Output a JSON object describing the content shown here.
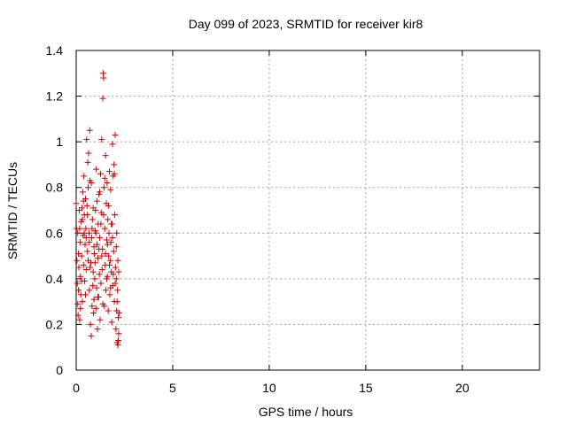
{
  "chart_data": {
    "type": "scatter",
    "title": "Day 099 of 2023, SRMTID for receiver kir8",
    "xlabel": "GPS time / hours",
    "ylabel": "SRMTID / TECUs",
    "xlim": [
      0,
      24
    ],
    "ylim": [
      0,
      1.4
    ],
    "xticks": [
      0,
      5,
      10,
      15,
      20
    ],
    "yticks": [
      0,
      0.2,
      0.4,
      0.6,
      0.8,
      1,
      1.2,
      1.4
    ],
    "ytick_labels": [
      "0",
      "0.2",
      "0.4",
      "0.6",
      "0.8",
      "1",
      "1.2",
      "1.4"
    ],
    "grid": true,
    "marker": "+",
    "series": [
      {
        "name": "kir8",
        "color": "#cc0000",
        "points": [
          [
            0.0,
            0.73
          ],
          [
            0.02,
            0.62
          ],
          [
            0.04,
            0.48
          ],
          [
            0.06,
            0.38
          ],
          [
            0.08,
            0.6
          ],
          [
            0.1,
            0.24
          ],
          [
            0.12,
            0.35
          ],
          [
            0.14,
            0.45
          ],
          [
            0.16,
            0.7
          ],
          [
            0.18,
            0.22
          ],
          [
            0.2,
            0.56
          ],
          [
            0.22,
            0.41
          ],
          [
            0.24,
            0.33
          ],
          [
            0.26,
            0.65
          ],
          [
            0.28,
            0.5
          ],
          [
            0.3,
            0.71
          ],
          [
            0.32,
            0.3
          ],
          [
            0.34,
            0.78
          ],
          [
            0.36,
            0.59
          ],
          [
            0.38,
            0.46
          ],
          [
            0.4,
            0.85
          ],
          [
            0.42,
            0.68
          ],
          [
            0.44,
            0.39
          ],
          [
            0.46,
            0.55
          ],
          [
            0.48,
            0.75
          ],
          [
            0.5,
            0.62
          ],
          [
            0.52,
            0.44
          ],
          [
            0.54,
            1.01
          ],
          [
            0.56,
            0.72
          ],
          [
            0.58,
            0.52
          ],
          [
            0.6,
            0.91
          ],
          [
            0.62,
            0.8
          ],
          [
            0.64,
            0.95
          ],
          [
            0.66,
            0.6
          ],
          [
            0.68,
            0.35
          ],
          [
            0.7,
            1.05
          ],
          [
            0.72,
            0.83
          ],
          [
            0.74,
            0.2
          ],
          [
            0.76,
            0.47
          ],
          [
            0.78,
            0.15
          ],
          [
            0.8,
            0.58
          ],
          [
            0.82,
            0.28
          ],
          [
            0.84,
            0.66
          ],
          [
            0.86,
            0.37
          ],
          [
            0.88,
            0.43
          ],
          [
            0.9,
            0.25
          ],
          [
            0.92,
            0.31
          ],
          [
            0.94,
            0.51
          ],
          [
            0.96,
            0.4
          ],
          [
            0.98,
            0.61
          ],
          [
            1.0,
            0.7
          ],
          [
            1.02,
            0.27
          ],
          [
            1.04,
            0.88
          ],
          [
            1.06,
            0.36
          ],
          [
            1.08,
            0.55
          ],
          [
            1.1,
            0.18
          ],
          [
            1.12,
            0.49
          ],
          [
            1.14,
            0.64
          ],
          [
            1.16,
            0.32
          ],
          [
            1.18,
            0.77
          ],
          [
            1.2,
            0.42
          ],
          [
            1.22,
            0.58
          ],
          [
            1.24,
            0.22
          ],
          [
            1.26,
            0.86
          ],
          [
            1.28,
            0.38
          ],
          [
            1.3,
            0.69
          ],
          [
            1.32,
            1.01
          ],
          [
            1.34,
            0.44
          ],
          [
            1.36,
            0.53
          ],
          [
            1.38,
            1.19
          ],
          [
            1.4,
            1.3
          ],
          [
            1.42,
            1.28
          ],
          [
            1.44,
            0.8
          ],
          [
            1.46,
            0.28
          ],
          [
            1.48,
            0.62
          ],
          [
            1.5,
            0.46
          ],
          [
            1.52,
            0.94
          ],
          [
            1.54,
            0.35
          ],
          [
            1.56,
            0.73
          ],
          [
            1.58,
            0.57
          ],
          [
            1.6,
            0.82
          ],
          [
            1.62,
            0.41
          ],
          [
            1.64,
            0.66
          ],
          [
            1.66,
            0.26
          ],
          [
            1.68,
            0.5
          ],
          [
            1.7,
            0.6
          ],
          [
            1.72,
            0.87
          ],
          [
            1.74,
            0.33
          ],
          [
            1.76,
            0.48
          ],
          [
            1.78,
            0.79
          ],
          [
            1.8,
            0.56
          ],
          [
            1.82,
            0.43
          ],
          [
            1.84,
            0.21
          ],
          [
            1.86,
            0.64
          ],
          [
            1.88,
            0.99
          ],
          [
            1.9,
            0.37
          ],
          [
            1.92,
            0.85
          ],
          [
            1.94,
            0.52
          ],
          [
            1.96,
            0.9
          ],
          [
            1.98,
            0.3
          ],
          [
            2.0,
            0.68
          ],
          [
            2.02,
            1.03
          ],
          [
            2.04,
            0.45
          ],
          [
            2.06,
            0.18
          ],
          [
            2.08,
            0.4
          ],
          [
            2.1,
            0.26
          ],
          [
            2.12,
            0.12
          ],
          [
            2.14,
            0.35
          ],
          [
            2.16,
            0.48
          ],
          [
            2.18,
            0.23
          ],
          [
            2.2,
            0.16
          ],
          [
            2.22,
            0.25
          ],
          [
            0.08,
            0.29
          ],
          [
            0.18,
            0.62
          ],
          [
            0.28,
            0.39
          ],
          [
            0.38,
            0.74
          ],
          [
            0.48,
            0.33
          ],
          [
            0.58,
            0.68
          ],
          [
            0.68,
            0.56
          ],
          [
            0.78,
            0.82
          ],
          [
            0.88,
            0.71
          ],
          [
            0.98,
            0.47
          ],
          [
            1.08,
            0.74
          ],
          [
            1.18,
            0.53
          ],
          [
            1.28,
            0.64
          ],
          [
            1.38,
            0.29
          ],
          [
            1.48,
            0.84
          ],
          [
            1.58,
            0.4
          ],
          [
            1.68,
            0.72
          ],
          [
            1.78,
            0.36
          ],
          [
            1.88,
            0.58
          ],
          [
            1.98,
            0.86
          ],
          [
            2.08,
            0.54
          ],
          [
            2.18,
            0.13
          ],
          [
            0.12,
            0.51
          ],
          [
            0.42,
            0.6
          ],
          [
            0.72,
            0.45
          ],
          [
            1.02,
            0.6
          ],
          [
            1.32,
            0.5
          ],
          [
            1.62,
            0.55
          ],
          [
            1.92,
            0.42
          ],
          [
            2.12,
            0.3
          ],
          [
            0.22,
            0.27
          ],
          [
            0.52,
            0.58
          ],
          [
            0.82,
            0.62
          ],
          [
            1.12,
            0.32
          ],
          [
            1.42,
            0.68
          ],
          [
            1.72,
            0.46
          ],
          [
            2.02,
            0.38
          ],
          [
            2.2,
            0.43
          ],
          [
            0.32,
            0.66
          ],
          [
            0.62,
            0.48
          ],
          [
            0.92,
            0.54
          ],
          [
            1.22,
            0.78
          ],
          [
            1.52,
            0.51
          ],
          [
            1.82,
            0.64
          ],
          [
            2.1,
            0.6
          ],
          [
            2.16,
            0.11
          ]
        ]
      }
    ]
  }
}
